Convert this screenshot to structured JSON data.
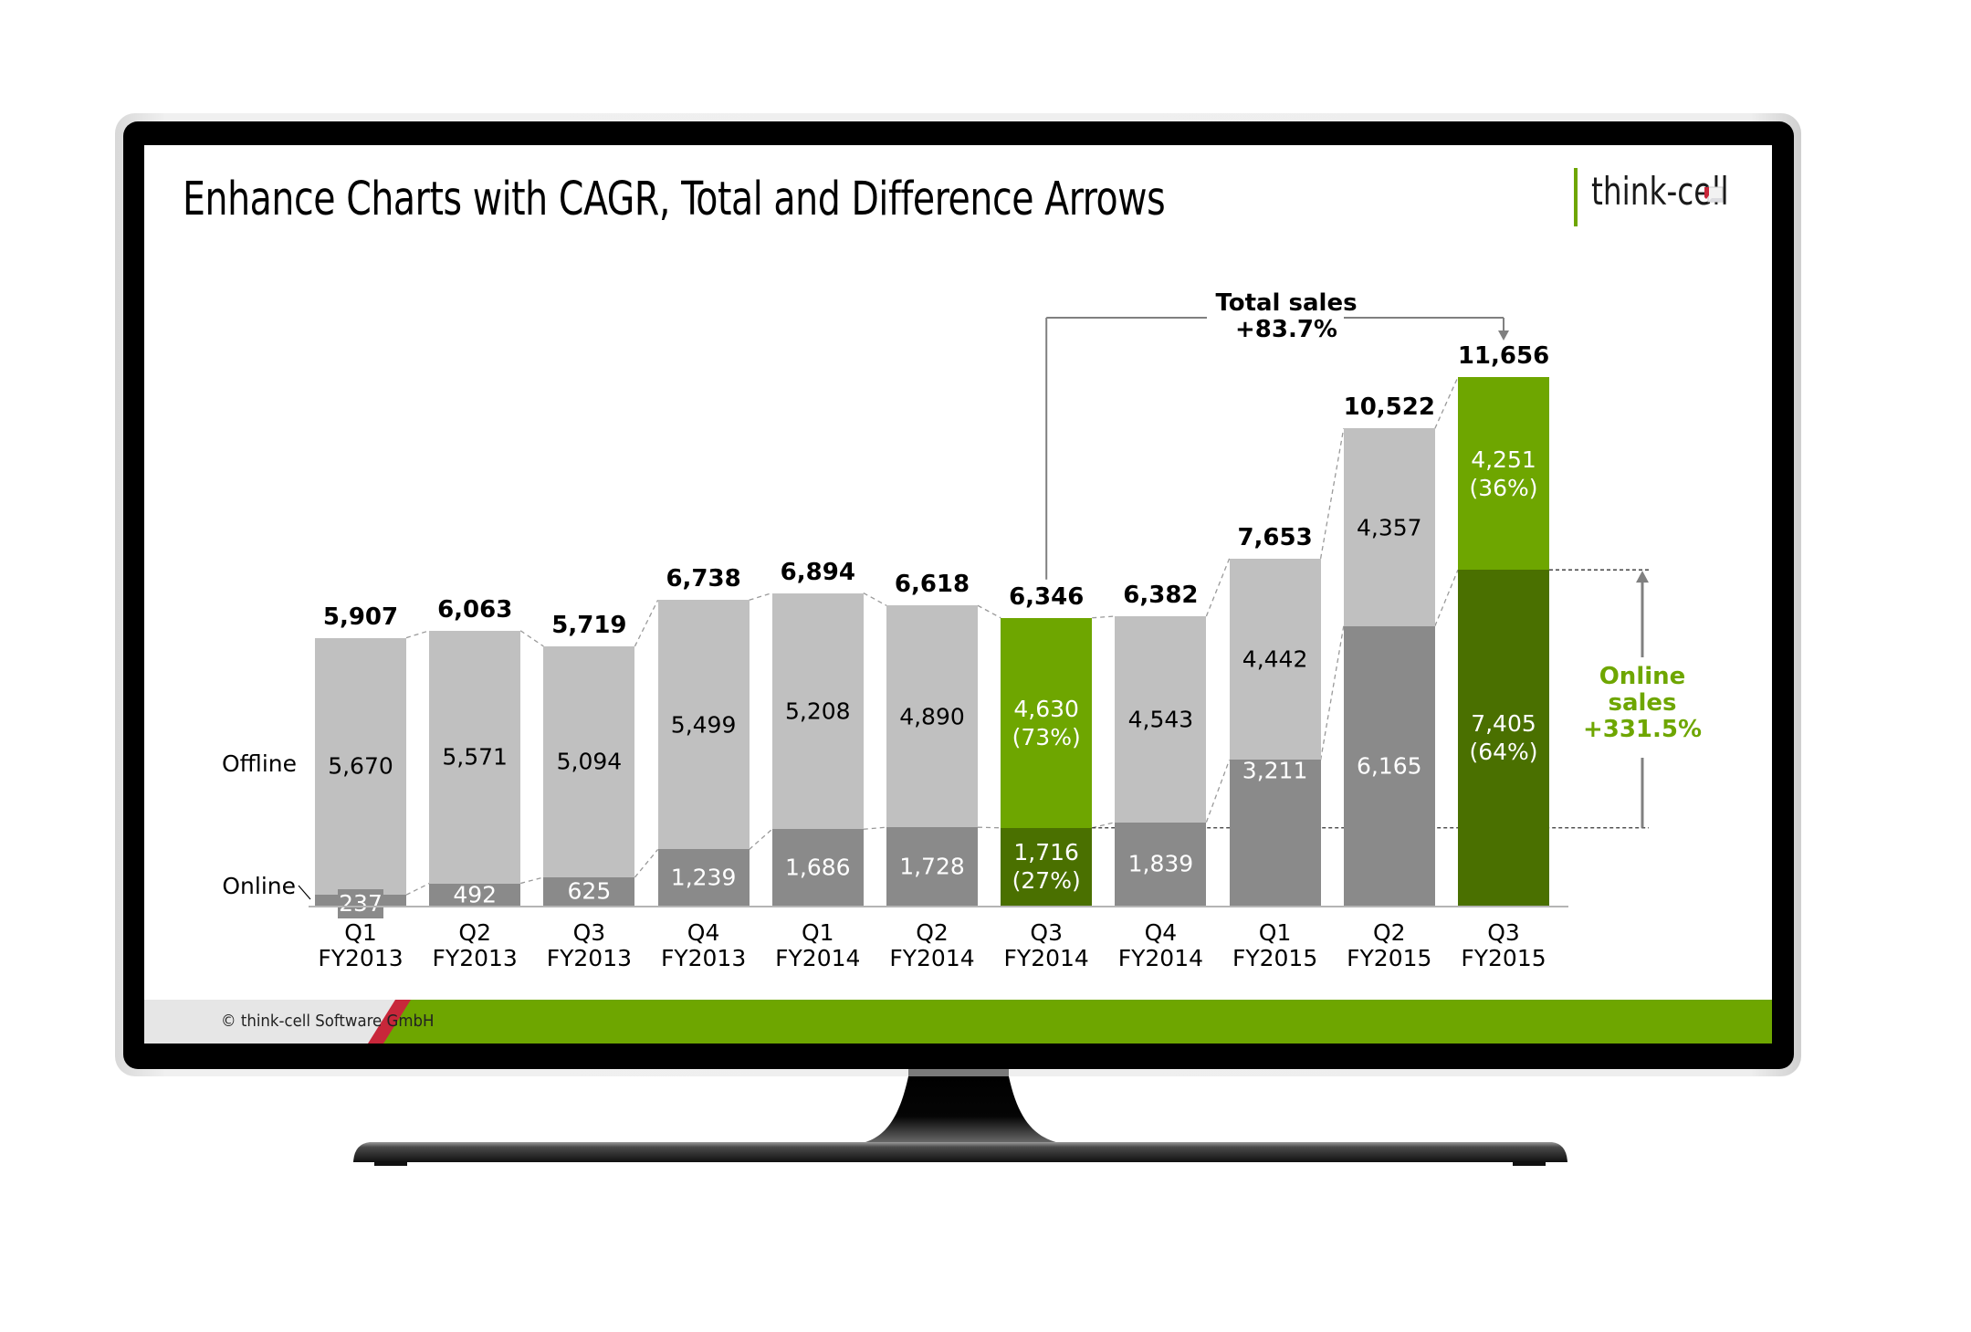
{
  "slide": {
    "title": "Enhance Charts with CAGR, Total and Difference Arrows",
    "logo_text": "think-cell",
    "footer_text": "© think-cell Software GmbH"
  },
  "colors": {
    "offline_gray": "#c0c0c0",
    "online_gray": "#8a8a8a",
    "highlight_light_green": "#6ea600",
    "highlight_dark_green": "#4a7000",
    "annotation_green": "#6ea600",
    "footer_red": "#c8273a",
    "arrow_gray": "#808080"
  },
  "series_labels": {
    "offline": "Offline",
    "online": "Online"
  },
  "annotations": {
    "total_arrow": {
      "line1": "Total sales",
      "line2": "+83.7%"
    },
    "online_arrow": {
      "line1": "Online",
      "line2": "sales",
      "line3": "+331.5%"
    }
  },
  "chart_data": {
    "type": "bar",
    "stacked": true,
    "title": "Enhance Charts with CAGR, Total and Difference Arrows",
    "xlabel": "",
    "ylabel": "",
    "categories": [
      "Q1 FY2013",
      "Q2 FY2013",
      "Q3 FY2013",
      "Q4 FY2013",
      "Q1 FY2014",
      "Q2 FY2014",
      "Q3 FY2014",
      "Q4 FY2014",
      "Q1 FY2015",
      "Q2 FY2015",
      "Q3 FY2015"
    ],
    "category_lines": [
      [
        "Q1",
        "FY2013"
      ],
      [
        "Q2",
        "FY2013"
      ],
      [
        "Q3",
        "FY2013"
      ],
      [
        "Q4",
        "FY2013"
      ],
      [
        "Q1",
        "FY2014"
      ],
      [
        "Q2",
        "FY2014"
      ],
      [
        "Q3",
        "FY2014"
      ],
      [
        "Q4",
        "FY2014"
      ],
      [
        "Q1",
        "FY2015"
      ],
      [
        "Q2",
        "FY2015"
      ],
      [
        "Q3",
        "FY2015"
      ]
    ],
    "series": [
      {
        "name": "Online",
        "values": [
          237,
          492,
          625,
          1239,
          1686,
          1728,
          1716,
          1839,
          3211,
          6165,
          7405
        ]
      },
      {
        "name": "Offline",
        "values": [
          5670,
          5571,
          5094,
          5499,
          5208,
          4890,
          4630,
          4543,
          4442,
          4357,
          4251
        ]
      }
    ],
    "totals": [
      5907,
      6063,
      5719,
      6738,
      6894,
      6618,
      6346,
      6382,
      7653,
      10522,
      11656
    ],
    "segment_labels": {
      "Online": [
        "237",
        "492",
        "625",
        "1,239",
        "1,686",
        "1,728",
        "1,716\n(27%)",
        "1,839",
        "3,211",
        "6,165",
        "7,405\n(64%)"
      ],
      "Offline": [
        "5,670",
        "5,571",
        "5,094",
        "5,499",
        "5,208",
        "4,890",
        "4,630\n(73%)",
        "4,543",
        "4,442",
        "4,357",
        "4,251\n(36%)"
      ]
    },
    "total_labels": [
      "5,907",
      "6,063",
      "5,719",
      "6,738",
      "6,894",
      "6,618",
      "6,346",
      "6,382",
      "7,653",
      "10,522",
      "11,656"
    ],
    "highlighted_categories": [
      "Q3 FY2014",
      "Q3 FY2015"
    ],
    "legend_position": "left (inline series labels)",
    "grid": false,
    "annotations": [
      {
        "type": "total_difference_arrow",
        "from": "Q3 FY2014",
        "to": "Q3 FY2015",
        "label": "Total sales +83.7%"
      },
      {
        "type": "segment_difference_arrow",
        "series": "Online",
        "from": "Q3 FY2014",
        "to": "Q3 FY2015",
        "label": "Online sales +331.5%"
      }
    ],
    "ylim": [
      0,
      11656
    ]
  }
}
